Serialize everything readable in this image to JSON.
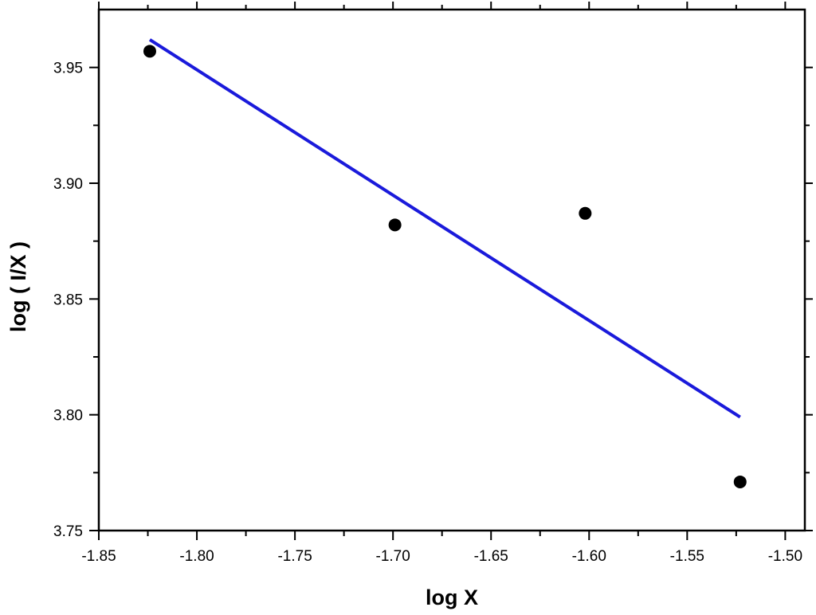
{
  "chart_data": {
    "type": "scatter",
    "xlabel": "log X",
    "ylabel": "log ( I/X )",
    "xlim": [
      -1.85,
      -1.49
    ],
    "ylim": [
      3.75,
      3.975
    ],
    "x_ticks": [
      "-1.85",
      "-1.80",
      "-1.75",
      "-1.70",
      "-1.65",
      "-1.60",
      "-1.55",
      "-1.50"
    ],
    "y_ticks": [
      "3.75",
      "3.80",
      "3.85",
      "3.90",
      "3.95"
    ],
    "grid": false,
    "legend": "none",
    "series": [
      {
        "kind": "points",
        "color": "#000000",
        "points": [
          {
            "x": -1.824,
            "y": 3.957
          },
          {
            "x": -1.699,
            "y": 3.882
          },
          {
            "x": -1.602,
            "y": 3.887
          },
          {
            "x": -1.523,
            "y": 3.771
          }
        ]
      },
      {
        "kind": "fit-line",
        "color": "#1a1adb",
        "points": [
          {
            "x": -1.824,
            "y": 3.962
          },
          {
            "x": -1.523,
            "y": 3.799
          }
        ]
      }
    ]
  }
}
